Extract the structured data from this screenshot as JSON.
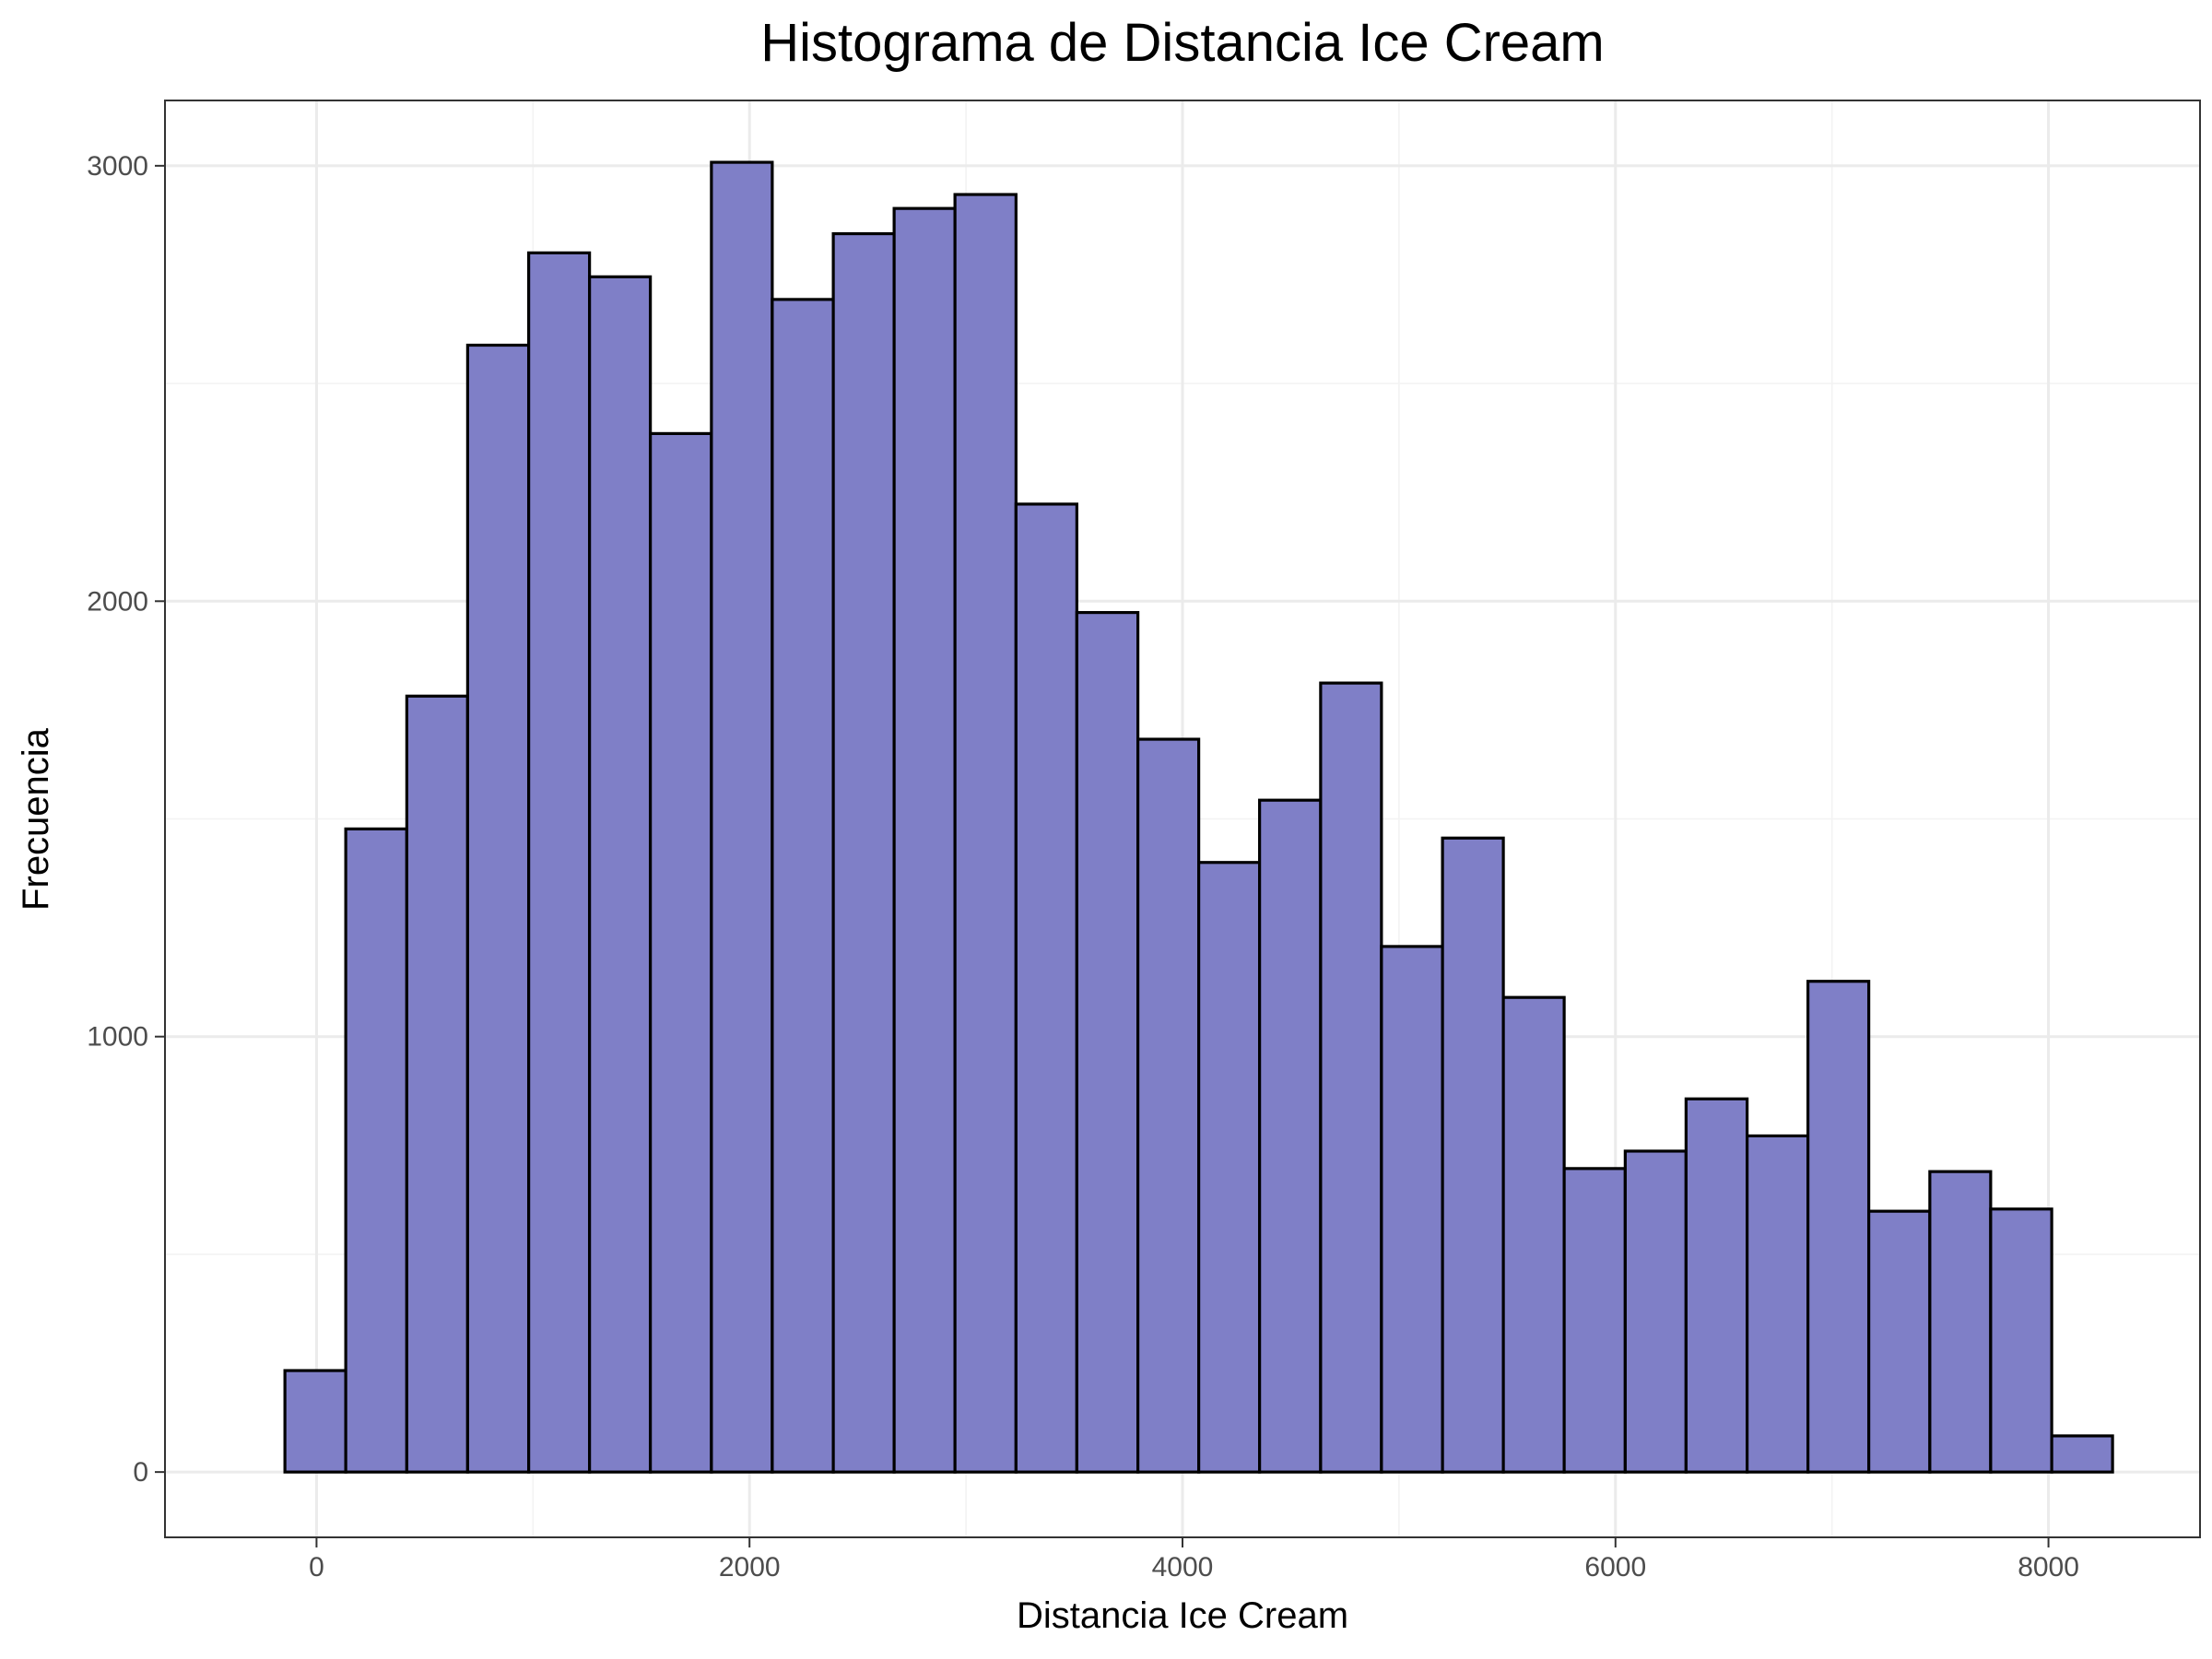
{
  "chart_data": {
    "type": "bar",
    "title": "Histograma de Distancia Ice Cream",
    "xlabel": "Distancia Ice Cream",
    "ylabel": "Frecuencia",
    "xlim": [
      -700,
      8700
    ],
    "ylim": [
      -150,
      3150
    ],
    "x_ticks": [
      0,
      2000,
      4000,
      6000,
      8000
    ],
    "y_ticks": [
      0,
      1000,
      2000,
      3000
    ],
    "x_tick_labels": [
      "0",
      "2000",
      "4000",
      "6000",
      "8000"
    ],
    "y_tick_labels": [
      "0",
      "1000",
      "2000",
      "3000"
    ],
    "grid": true,
    "bin_width": 281,
    "bins": [
      {
        "x0": -146,
        "x1": 135,
        "count": 233
      },
      {
        "x0": 135,
        "x1": 417,
        "count": 1477
      },
      {
        "x0": 417,
        "x1": 698,
        "count": 1782
      },
      {
        "x0": 698,
        "x1": 980,
        "count": 2588
      },
      {
        "x0": 980,
        "x1": 1261,
        "count": 2800
      },
      {
        "x0": 1261,
        "x1": 1542,
        "count": 2745
      },
      {
        "x0": 1542,
        "x1": 1824,
        "count": 2385
      },
      {
        "x0": 1824,
        "x1": 2105,
        "count": 3008
      },
      {
        "x0": 2105,
        "x1": 2387,
        "count": 2693
      },
      {
        "x0": 2387,
        "x1": 2668,
        "count": 2844
      },
      {
        "x0": 2668,
        "x1": 2949,
        "count": 2902
      },
      {
        "x0": 2949,
        "x1": 3231,
        "count": 2934
      },
      {
        "x0": 3231,
        "x1": 3512,
        "count": 2223
      },
      {
        "x0": 3512,
        "x1": 3794,
        "count": 1974
      },
      {
        "x0": 3794,
        "x1": 4075,
        "count": 1683
      },
      {
        "x0": 4075,
        "x1": 4356,
        "count": 1400
      },
      {
        "x0": 4356,
        "x1": 4638,
        "count": 1543
      },
      {
        "x0": 4638,
        "x1": 4919,
        "count": 1812
      },
      {
        "x0": 4919,
        "x1": 5201,
        "count": 1207
      },
      {
        "x0": 5201,
        "x1": 5482,
        "count": 1456
      },
      {
        "x0": 5482,
        "x1": 5763,
        "count": 1090
      },
      {
        "x0": 5763,
        "x1": 6045,
        "count": 697
      },
      {
        "x0": 6045,
        "x1": 6326,
        "count": 737
      },
      {
        "x0": 6326,
        "x1": 6608,
        "count": 857
      },
      {
        "x0": 6608,
        "x1": 6889,
        "count": 772
      },
      {
        "x0": 6889,
        "x1": 7170,
        "count": 1127
      },
      {
        "x0": 7170,
        "x1": 7452,
        "count": 599
      },
      {
        "x0": 7452,
        "x1": 7733,
        "count": 690
      },
      {
        "x0": 7733,
        "x1": 8015,
        "count": 604
      },
      {
        "x0": 8015,
        "x1": 8296,
        "count": 83
      }
    ],
    "colors": {
      "bar_fill": "#7f7fc7",
      "bar_stroke": "#000000",
      "background": "#ffffff"
    }
  }
}
